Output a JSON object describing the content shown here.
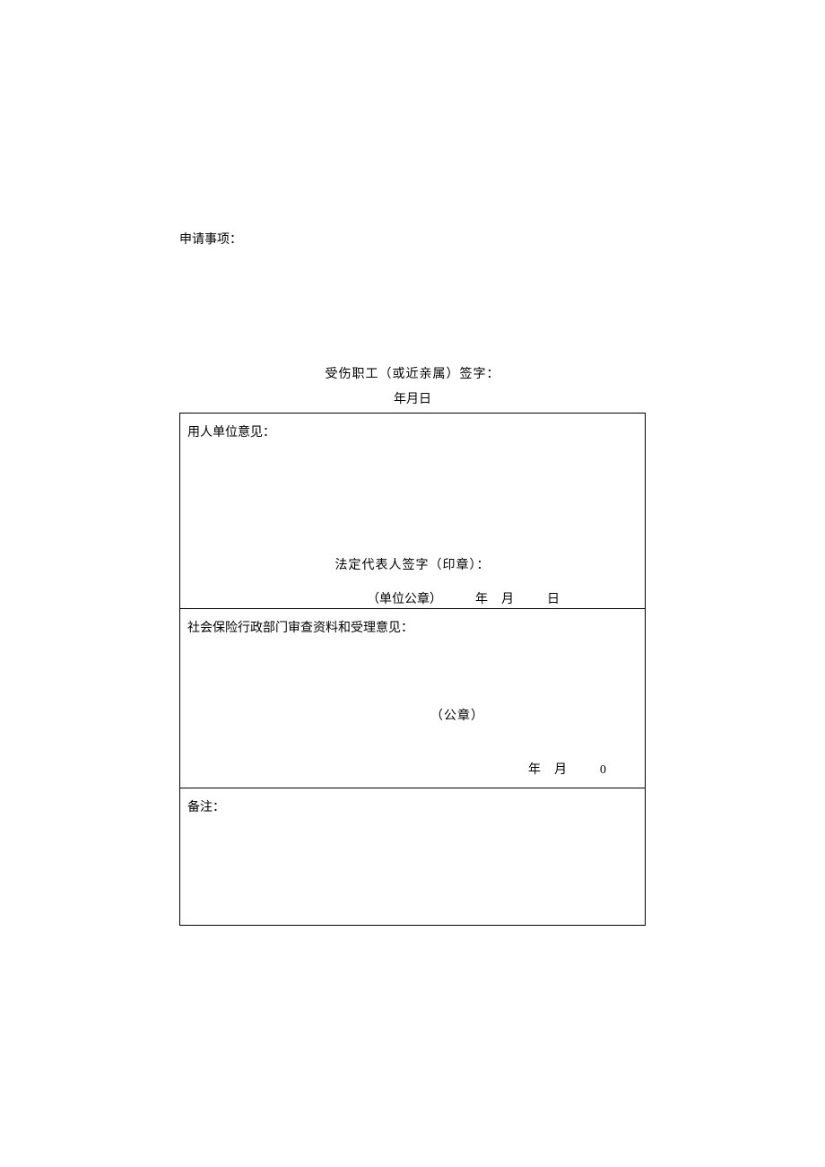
{
  "application": {
    "label": "申请事项："
  },
  "signature": {
    "text": "受伤职工（或近亲属）签字：",
    "date": "年月日"
  },
  "employer": {
    "label": "用人单位意见：",
    "legal_rep": "法定代表人签字（印章）：",
    "seal": "（单位公章）",
    "year": "年",
    "month": "月",
    "day": "日"
  },
  "admin": {
    "label": "社会保险行政部门审查资料和受理意见：",
    "seal": "（公章）",
    "year": "年",
    "month": "月",
    "day": "0"
  },
  "notes": {
    "label": "备注："
  },
  "styling": {
    "background_color": "#ffffff",
    "text_color": "#000000",
    "border_color": "#000000",
    "font_family": "SimSun",
    "base_font_size": 14
  }
}
